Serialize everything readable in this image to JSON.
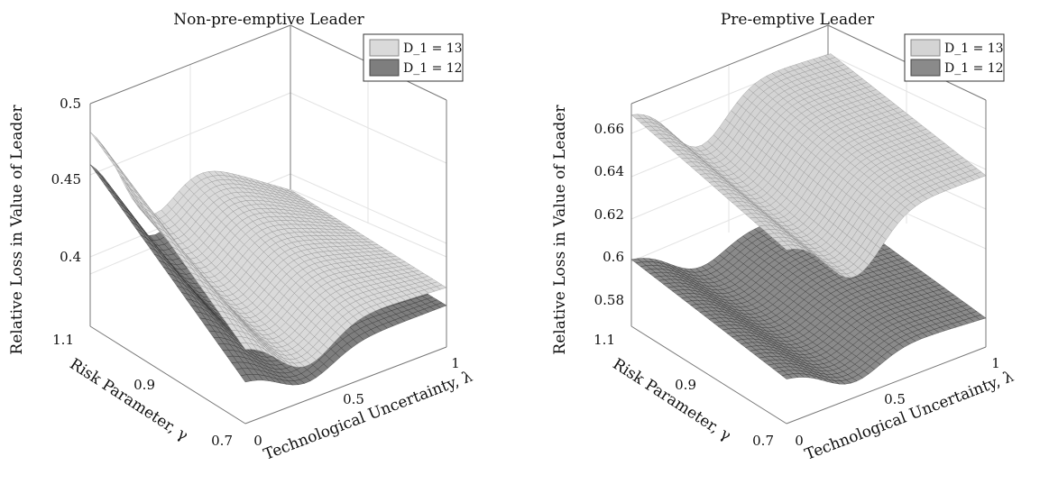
{
  "chart_data": [
    {
      "type": "surface",
      "title": "Non-pre-emptive Leader",
      "xlabel": "Technological Uncertainty, λ",
      "ylabel": "Risk Parameter, γ",
      "zlabel": "Relative Loss in Value of Leader",
      "xlim": [
        0,
        1
      ],
      "ylim": [
        0.7,
        1.1
      ],
      "zlim": [
        0.35,
        0.5
      ],
      "xticks": [
        "0",
        "0.5",
        "1"
      ],
      "yticks": [
        "0.7",
        "0.9",
        "1.1"
      ],
      "zticks": [
        "0.4",
        "0.45",
        "0.5"
      ],
      "legend": {
        "position": "top-right",
        "entries": [
          "D_1 = 13",
          "D_1 = 12"
        ]
      },
      "series": [
        {
          "name": "D_1 = 13",
          "color": "#dadada",
          "corners": {
            "l0_g0.7": 0.4,
            "l0_g1.1": 0.481,
            "l1_g0.7": 0.39,
            "l1_g1.1": 0.39
          },
          "min_point": {
            "lambda": 0.25,
            "z": 0.366
          }
        },
        {
          "name": "D_1 = 12",
          "color": "#7e7e7e",
          "corners": {
            "l0_g0.7": 0.378,
            "l0_g1.1": 0.459,
            "l1_g0.7": 0.378,
            "l1_g1.1": 0.376
          },
          "min_point": {
            "lambda": 0.25,
            "z": 0.357
          }
        }
      ]
    },
    {
      "type": "surface",
      "title": "Pre-emptive Leader",
      "xlabel": "Technological Uncertainty, λ",
      "ylabel": "Risk Parameter, γ",
      "zlabel": "Relative Loss in Value of Leader",
      "xlim": [
        0,
        1
      ],
      "ylim": [
        0.7,
        1.1
      ],
      "zlim": [
        0.57,
        0.67
      ],
      "xticks": [
        "0",
        "0.5",
        "1"
      ],
      "yticks": [
        "0.7",
        "0.9",
        "1.1"
      ],
      "zticks": [
        "0.58",
        "0.6",
        "0.62",
        "0.64",
        "0.66"
      ],
      "legend": {
        "position": "top-right",
        "entries": [
          "D_1 = 13",
          "D_1 = 12"
        ]
      },
      "series": [
        {
          "name": "D_1 = 13",
          "color": "#d4d4d4",
          "corners": {
            "l0_g0.7": 0.648,
            "l0_g1.1": 0.665,
            "l1_g0.7": 0.647,
            "l1_g1.1": 0.658
          },
          "min_point": {
            "lambda": 0.3,
            "z": 0.62
          }
        },
        {
          "name": "D_1 = 12",
          "color": "#8a8a8a",
          "corners": {
            "l0_g0.7": 0.59,
            "l0_g1.1": 0.6,
            "l1_g0.7": 0.583,
            "l1_g1.1": 0.59
          },
          "min_point": {
            "lambda": 0.3,
            "z": 0.575
          }
        }
      ]
    }
  ]
}
